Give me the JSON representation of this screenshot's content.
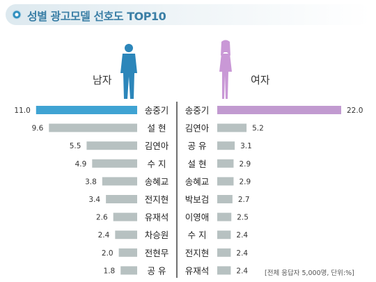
{
  "title": "성별 광고모델 선호도 TOP10",
  "male_label": "남자",
  "female_label": "여자",
  "footnote": "[전체 응답자 5,000명, 단위:%]",
  "colors": {
    "male_top": "#3fa3d3",
    "female_top": "#c19ad0",
    "other": "#b7c1c1",
    "male_figure": "#2c86ba",
    "female_figure": "#c998d6",
    "divider": "#333333"
  },
  "chart_data": [
    {
      "type": "bar",
      "name": "남자",
      "orientation": "horizontal",
      "direction": "right-to-left",
      "categories": [
        "송중기",
        "설 현",
        "김연아",
        "수 지",
        "송혜교",
        "전지현",
        "유재석",
        "차승원",
        "전현무",
        "공 유"
      ],
      "values": [
        11.0,
        9.6,
        5.5,
        4.9,
        3.8,
        3.4,
        2.6,
        2.4,
        2.0,
        1.8
      ],
      "value_labels": [
        "11.0",
        "9.6",
        "5.5",
        "4.9",
        "3.8",
        "3.4",
        "2.6",
        "2.4",
        "2.0",
        "1.8"
      ],
      "unit": "%"
    },
    {
      "type": "bar",
      "name": "여자",
      "orientation": "horizontal",
      "direction": "left-to-right",
      "categories": [
        "송중기",
        "김연아",
        "공 유",
        "설 현",
        "송혜교",
        "박보검",
        "이영애",
        "수 지",
        "전지현",
        "유재석"
      ],
      "values": [
        22.0,
        5.2,
        3.1,
        2.9,
        2.9,
        2.7,
        2.5,
        2.4,
        2.4,
        2.4
      ],
      "value_labels": [
        "22.0",
        "5.2",
        "3.1",
        "2.9",
        "2.9",
        "2.7",
        "2.5",
        "2.4",
        "2.4",
        "2.4"
      ],
      "unit": "%"
    }
  ]
}
